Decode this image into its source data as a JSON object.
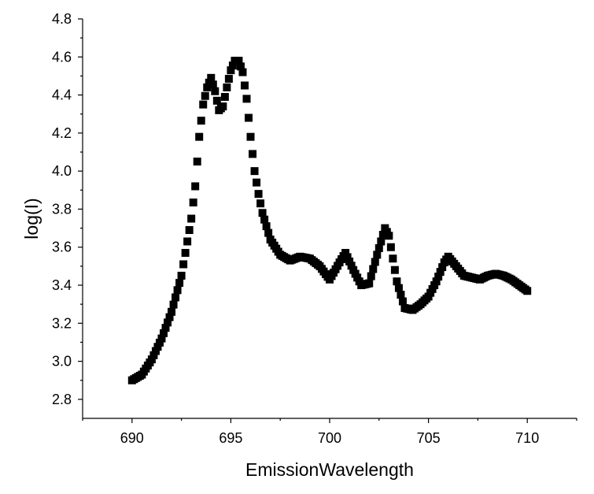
{
  "chart_data": {
    "type": "scatter",
    "title": "",
    "xlabel": "EmissionWavelength",
    "ylabel": "log(I)",
    "xlim": [
      687.5,
      712.5
    ],
    "ylim": [
      2.7,
      4.8
    ],
    "xticks": [
      690,
      695,
      700,
      705,
      710
    ],
    "xtick_labels": [
      "690",
      "695",
      "700",
      "705",
      "710"
    ],
    "yticks": [
      2.8,
      3.0,
      3.2,
      3.4,
      3.6,
      3.8,
      4.0,
      4.2,
      4.4,
      4.6,
      4.8
    ],
    "ytick_labels": [
      "2.8",
      "3.0",
      "3.2",
      "3.4",
      "3.6",
      "3.8",
      "4.0",
      "4.2",
      "4.4",
      "4.6",
      "4.8"
    ],
    "grid": false,
    "legend": "none",
    "marker": "square",
    "marker_color": "#000000",
    "series": [
      {
        "x": [
          690.0,
          690.5,
          691.0,
          691.5,
          692.0,
          692.5,
          693.0,
          693.2,
          693.4,
          693.6,
          693.8,
          694.0,
          694.2,
          694.4,
          694.6,
          694.8,
          695.0,
          695.2,
          695.4,
          695.6,
          695.8,
          696.0,
          696.2,
          696.4,
          696.6,
          696.8,
          697.0,
          697.5,
          698.0,
          698.5,
          699.0,
          699.5,
          700.0,
          700.5,
          700.8,
          701.2,
          701.6,
          702.0,
          702.4,
          702.8,
          703.0,
          703.4,
          703.8,
          704.2,
          704.6,
          705.0,
          705.4,
          705.8,
          706.0,
          706.4,
          706.8,
          707.2,
          707.6,
          708.0,
          708.4,
          708.8,
          709.2,
          709.6,
          710.0
        ],
        "y": [
          2.9,
          2.93,
          3.01,
          3.12,
          3.26,
          3.45,
          3.75,
          3.92,
          4.18,
          4.35,
          4.44,
          4.49,
          4.42,
          4.32,
          4.34,
          4.44,
          4.53,
          4.58,
          4.58,
          4.52,
          4.38,
          4.18,
          4.0,
          3.88,
          3.78,
          3.71,
          3.64,
          3.56,
          3.53,
          3.55,
          3.54,
          3.5,
          3.43,
          3.52,
          3.57,
          3.48,
          3.4,
          3.41,
          3.56,
          3.7,
          3.66,
          3.42,
          3.28,
          3.27,
          3.3,
          3.34,
          3.42,
          3.52,
          3.55,
          3.5,
          3.45,
          3.44,
          3.43,
          3.45,
          3.46,
          3.45,
          3.43,
          3.4,
          3.37
        ]
      }
    ]
  }
}
